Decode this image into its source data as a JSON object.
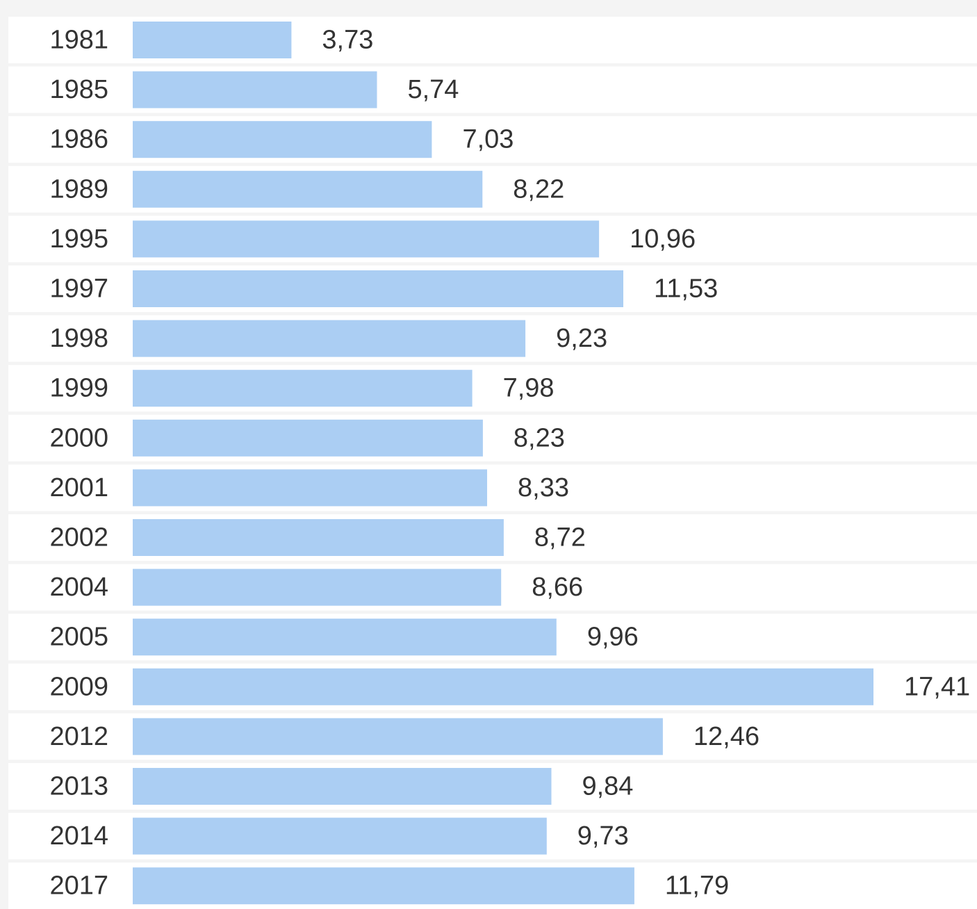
{
  "chart_data": {
    "type": "bar",
    "orientation": "horizontal",
    "title": "",
    "xlabel": "",
    "ylabel": "",
    "grid": false,
    "legend": "none",
    "categories": [
      "1981",
      "1985",
      "1986",
      "1989",
      "1995",
      "1997",
      "1998",
      "1999",
      "2000",
      "2001",
      "2002",
      "2004",
      "2005",
      "2009",
      "2012",
      "2013",
      "2014",
      "2017"
    ],
    "values": [
      3.73,
      5.74,
      7.03,
      8.22,
      10.96,
      11.53,
      9.23,
      7.98,
      8.23,
      8.33,
      8.72,
      8.66,
      9.96,
      17.41,
      12.46,
      9.84,
      9.73,
      11.79
    ],
    "value_labels": [
      "3,73",
      "5,74",
      "7,03",
      "8,22",
      "10,96",
      "11,53",
      "9,23",
      "7,98",
      "8,23",
      "8,33",
      "8,72",
      "8,66",
      "9,96",
      "17,41",
      "12,46",
      "9,84",
      "9,73",
      "11,79"
    ],
    "xlim": [
      0,
      17.41
    ],
    "colors": {
      "bar": "#abcef3",
      "row_background": "#ffffff",
      "page_background": "#f4f4f4",
      "text": "#333333"
    }
  }
}
